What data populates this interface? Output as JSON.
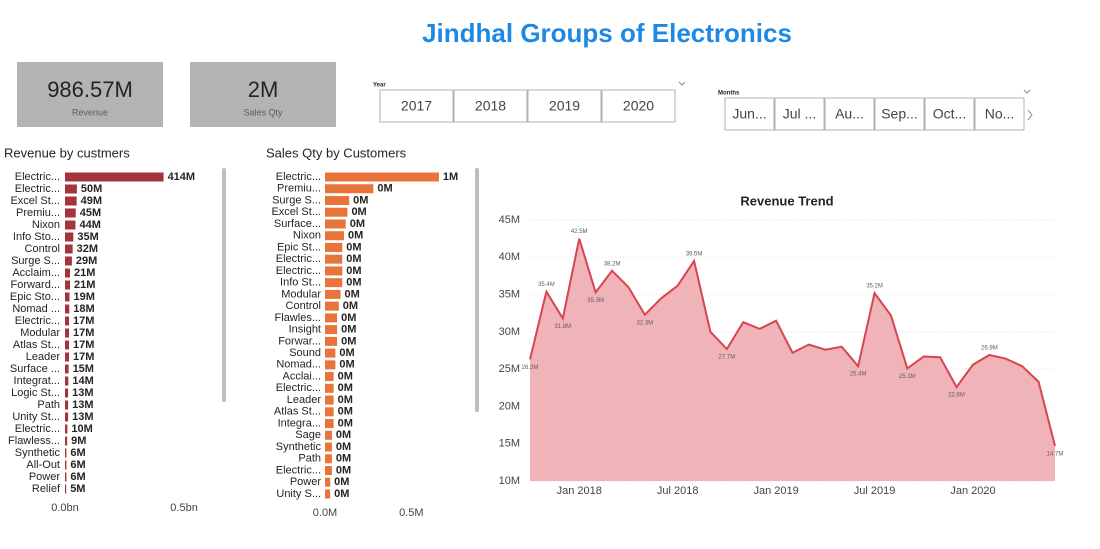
{
  "title": "Jindhal Groups of Electronics",
  "cards": [
    {
      "value": "986.57M",
      "label": "Revenue"
    },
    {
      "value": "2M",
      "label": "Sales Qty"
    }
  ],
  "year_slicer": {
    "label": "Year",
    "options": [
      "2017",
      "2018",
      "2019",
      "2020"
    ]
  },
  "month_slicer": {
    "label": "Months",
    "options": [
      "Jun...",
      "Jul ...",
      "Au...",
      "Sep...",
      "Oct...",
      "No..."
    ]
  },
  "chart_data": [
    {
      "type": "bar",
      "title": "Revenue by custmers",
      "categories": [
        "Electric...",
        "Electric...",
        "Excel St...",
        "Premiu...",
        "Nixon",
        "Info Sto...",
        "Control",
        "Surge S...",
        "Acclaim...",
        "Forward...",
        "Epic Sto...",
        "Nomad ...",
        "Electric...",
        "Modular",
        "Atlas St...",
        "Leader",
        "Surface ...",
        "Integrat...",
        "Logic St...",
        "Path",
        "Unity St...",
        "Electric...",
        "Flawless...",
        "Synthetic",
        "All-Out",
        "Power",
        "Relief"
      ],
      "values": [
        414,
        50,
        49,
        45,
        44,
        35,
        32,
        29,
        21,
        21,
        19,
        18,
        17,
        17,
        17,
        17,
        15,
        14,
        13,
        13,
        13,
        10,
        9,
        6,
        6,
        6,
        5
      ],
      "value_labels": [
        "414M",
        "50M",
        "49M",
        "45M",
        "44M",
        "35M",
        "32M",
        "29M",
        "21M",
        "21M",
        "19M",
        "18M",
        "17M",
        "17M",
        "17M",
        "17M",
        "15M",
        "14M",
        "13M",
        "13M",
        "13M",
        "10M",
        "9M",
        "6M",
        "6M",
        "6M",
        "5M"
      ],
      "color": "#a4343a",
      "xlim": [
        0,
        630
      ],
      "xticks": [
        {
          "value": 0,
          "label": "0.0bn"
        },
        {
          "value": 500,
          "label": "0.5bn"
        }
      ]
    },
    {
      "type": "bar",
      "title": "Sales Qty by Customers",
      "categories": [
        "Electric...",
        "Premiu...",
        "Surge S...",
        "Excel St...",
        "Surface...",
        "Nixon",
        "Epic St...",
        "Electric...",
        "Electric...",
        "Info St...",
        "Modular",
        "Control",
        "Flawles...",
        "Insight",
        "Forwar...",
        "Sound",
        "Nomad...",
        "Acclai...",
        "Electric...",
        "Leader",
        "Atlas St...",
        "Integra...",
        "Sage",
        "Synthetic",
        "Path",
        "Electric...",
        "Power",
        "Unity S..."
      ],
      "values": [
        0.66,
        0.28,
        0.14,
        0.13,
        0.12,
        0.11,
        0.1,
        0.1,
        0.1,
        0.1,
        0.09,
        0.08,
        0.07,
        0.07,
        0.07,
        0.06,
        0.06,
        0.05,
        0.05,
        0.05,
        0.05,
        0.05,
        0.04,
        0.04,
        0.04,
        0.04,
        0.03,
        0.03
      ],
      "value_labels": [
        "1M",
        "0M",
        "0M",
        "0M",
        "0M",
        "0M",
        "0M",
        "0M",
        "0M",
        "0M",
        "0M",
        "0M",
        "0M",
        "0M",
        "0M",
        "0M",
        "0M",
        "0M",
        "0M",
        "0M",
        "0M",
        "0M",
        "0M",
        "0M",
        "0M",
        "0M",
        "0M",
        "0M"
      ],
      "color": "#e8743b",
      "xlim": [
        0,
        0.84
      ],
      "xticks": [
        {
          "value": 0,
          "label": "0.0M"
        },
        {
          "value": 0.5,
          "label": "0.5M"
        }
      ]
    },
    {
      "type": "line",
      "title": "Revenue Trend",
      "x": [
        "2017-10",
        "2017-11",
        "2017-12",
        "2018-01",
        "2018-02",
        "2018-03",
        "2018-04",
        "2018-05",
        "2018-06",
        "2018-07",
        "2018-08",
        "2018-09",
        "2018-10",
        "2018-11",
        "2018-12",
        "2019-01",
        "2019-02",
        "2019-03",
        "2019-04",
        "2019-05",
        "2019-06",
        "2019-07",
        "2019-08",
        "2019-09",
        "2019-10",
        "2019-11",
        "2019-12",
        "2020-01",
        "2020-02",
        "2020-03",
        "2020-04",
        "2020-05",
        "2020-06"
      ],
      "values": [
        26.3,
        35.4,
        31.8,
        42.5,
        35.3,
        38.2,
        36,
        32.3,
        34.5,
        36.2,
        39.5,
        30,
        27.7,
        31.3,
        30.4,
        31.5,
        27.2,
        28.3,
        27.6,
        28,
        25.4,
        35.2,
        32.2,
        25.1,
        26.7,
        26.6,
        22.6,
        25.6,
        26.9,
        26.4,
        25.4,
        23.3,
        14.7
      ],
      "value_labels": [
        "26.3M",
        "35.4M",
        "31.8M",
        "42.5M",
        "35.3M",
        "38.2M",
        null,
        "32.3M",
        null,
        null,
        "39.5M",
        null,
        "27.7M",
        null,
        null,
        null,
        null,
        null,
        null,
        null,
        "25.4M",
        "35.2M",
        null,
        "25.1M",
        null,
        null,
        "22.6M",
        null,
        "26.9M",
        null,
        null,
        null,
        "14.7M"
      ],
      "color": "#d64550",
      "fill": "#f0b3b8",
      "ylim": [
        10,
        45
      ],
      "yticks": [
        {
          "value": 10,
          "label": "10M"
        },
        {
          "value": 15,
          "label": "15M"
        },
        {
          "value": 20,
          "label": "20M"
        },
        {
          "value": 25,
          "label": "25M"
        },
        {
          "value": 30,
          "label": "30M"
        },
        {
          "value": 35,
          "label": "35M"
        },
        {
          "value": 40,
          "label": "40M"
        },
        {
          "value": 45,
          "label": "45M"
        }
      ],
      "xticks": [
        {
          "value": "2018-01",
          "label": "Jan 2018"
        },
        {
          "value": "2018-07",
          "label": "Jul 2018"
        },
        {
          "value": "2019-01",
          "label": "Jan 2019"
        },
        {
          "value": "2019-07",
          "label": "Jul 2019"
        },
        {
          "value": "2020-01",
          "label": "Jan 2020"
        }
      ],
      "grid": true
    }
  ]
}
